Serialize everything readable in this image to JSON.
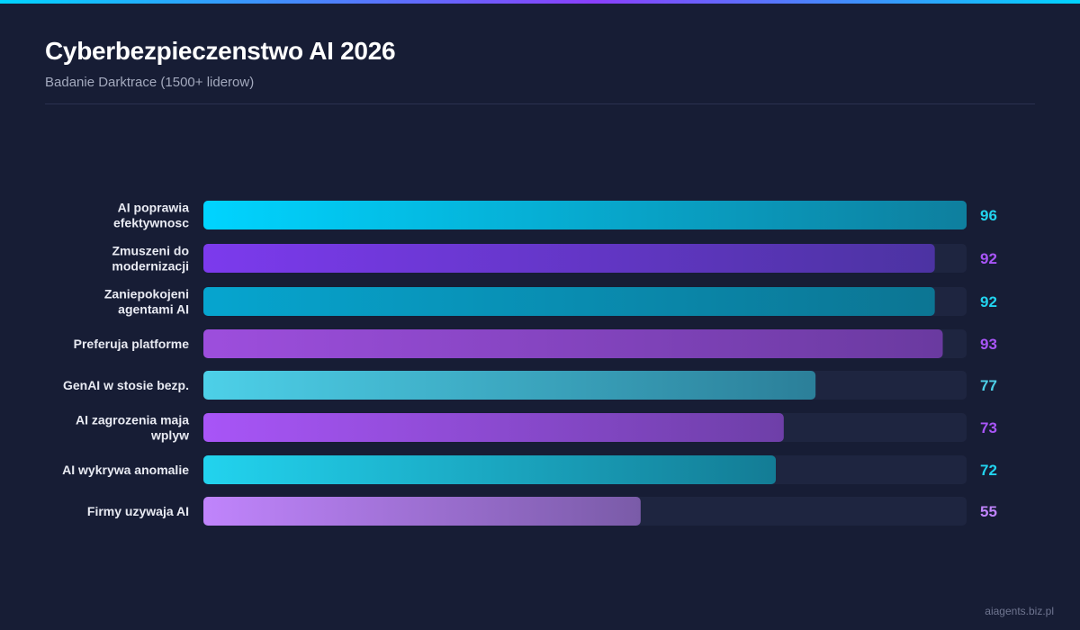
{
  "header": {
    "title": "Cyberbezpieczenstwo AI 2026",
    "subtitle": "Badanie Darktrace (1500+ liderow)"
  },
  "watermark": "aiagents.biz.pl",
  "colors": {
    "background": "#171d35",
    "track": "#1e2540",
    "cyan": "#00d4ff",
    "purple": "#8a3ffc"
  },
  "chart_data": {
    "type": "bar",
    "orientation": "horizontal",
    "title": "Cyberbezpieczenstwo AI 2026",
    "subtitle": "Badanie Darktrace (1500+ liderow)",
    "xlim": [
      0,
      96
    ],
    "grid": false,
    "legend": "none",
    "categories": [
      "AI poprawia efektywnosc",
      "Zmuszeni do modernizacji",
      "Zaniepokojeni agentami AI",
      "Preferuja platforme",
      "GenAI w stosie bezp.",
      "AI zagrozenia maja wplyw",
      "AI wykrywa anomalie",
      "Firmy uzywaja AI"
    ],
    "values": [
      96,
      92,
      92,
      93,
      77,
      73,
      72,
      55
    ],
    "label_lines": [
      [
        "AI poprawia",
        "efektywnosc"
      ],
      [
        "Zmuszeni do",
        "modernizacji"
      ],
      [
        "Zaniepokojeni",
        "agentami AI"
      ],
      [
        "Preferuja platforme"
      ],
      [
        "GenAI w stosie bezp."
      ],
      [
        "AI zagrozenia maja",
        "wplyw"
      ],
      [
        "AI wykrywa anomalie"
      ],
      [
        "Firmy uzywaja AI"
      ]
    ],
    "bar_colors": [
      [
        "#00d4ff",
        "#0e7f9e"
      ],
      [
        "#7c3aed",
        "#4c33a2"
      ],
      [
        "#06a5cf",
        "#0c7593"
      ],
      [
        "#9d4edd",
        "#6a3aa0"
      ],
      [
        "#4dd0e8",
        "#2b7f99"
      ],
      [
        "#a855f7",
        "#6e3fa8"
      ],
      [
        "#22d3ee",
        "#137c95"
      ],
      [
        "#c084fc",
        "#7a5ba8"
      ]
    ],
    "value_colors": [
      "#22d3ee",
      "#a855f7",
      "#22d3ee",
      "#a855f7",
      "#4dd0e8",
      "#a855f7",
      "#22d3ee",
      "#c084fc"
    ]
  }
}
